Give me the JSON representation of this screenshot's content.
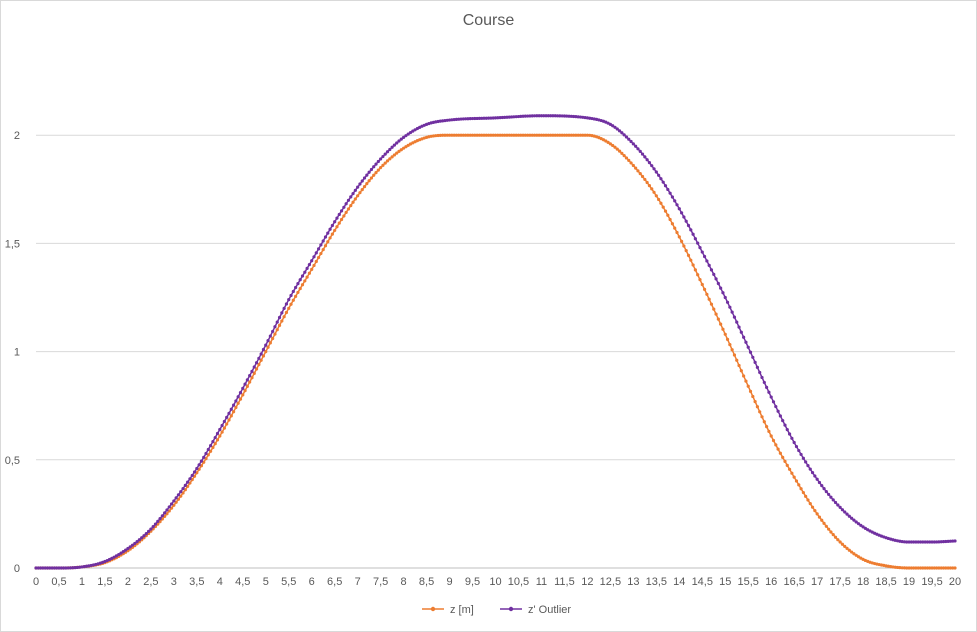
{
  "chart_data": {
    "type": "line",
    "title": "Course",
    "xlabel": "",
    "ylabel": "",
    "xlim": [
      0,
      20
    ],
    "ylim": [
      0,
      2.5
    ],
    "x_ticks": [
      "0",
      "0,5",
      "1",
      "1,5",
      "2",
      "2,5",
      "3",
      "3,5",
      "4",
      "4,5",
      "5",
      "5,5",
      "6",
      "6,5",
      "7",
      "7,5",
      "8",
      "8,5",
      "9",
      "9,5",
      "10",
      "10,5",
      "11",
      "11,5",
      "12",
      "12,5",
      "13",
      "13,5",
      "14",
      "14,5",
      "15",
      "15,5",
      "16",
      "16,5",
      "17",
      "17,5",
      "18",
      "18,5",
      "19",
      "19,5",
      "20"
    ],
    "y_ticks": [
      "0",
      "0,5",
      "1",
      "1,5",
      "2"
    ],
    "grid": "horizontal",
    "legend_position": "bottom",
    "series": [
      {
        "name": "z [m]",
        "color": "#ED7D31",
        "points": [
          [
            0,
            0
          ],
          [
            0.5,
            0
          ],
          [
            1,
            0.005
          ],
          [
            1.5,
            0.025
          ],
          [
            2,
            0.08
          ],
          [
            2.5,
            0.17
          ],
          [
            3,
            0.29
          ],
          [
            3.5,
            0.44
          ],
          [
            4,
            0.61
          ],
          [
            4.5,
            0.8
          ],
          [
            5,
            1.0
          ],
          [
            5.5,
            1.2
          ],
          [
            6,
            1.38
          ],
          [
            6.5,
            1.56
          ],
          [
            7,
            1.72
          ],
          [
            7.5,
            1.85
          ],
          [
            8,
            1.94
          ],
          [
            8.5,
            1.99
          ],
          [
            9,
            2.0
          ],
          [
            10,
            2.0
          ],
          [
            11,
            2.0
          ],
          [
            12,
            2.0
          ],
          [
            12.5,
            1.96
          ],
          [
            13,
            1.86
          ],
          [
            13.5,
            1.72
          ],
          [
            14,
            1.53
          ],
          [
            14.5,
            1.31
          ],
          [
            15,
            1.08
          ],
          [
            15.5,
            0.84
          ],
          [
            16,
            0.61
          ],
          [
            16.5,
            0.42
          ],
          [
            17,
            0.25
          ],
          [
            17.5,
            0.12
          ],
          [
            18,
            0.04
          ],
          [
            18.5,
            0.01
          ],
          [
            19,
            0
          ],
          [
            19.5,
            0
          ],
          [
            20,
            0
          ]
        ]
      },
      {
        "name": "z' Outlier",
        "color": "#7030A0",
        "points": [
          [
            0,
            0
          ],
          [
            0.5,
            0
          ],
          [
            1,
            0.005
          ],
          [
            1.5,
            0.03
          ],
          [
            2,
            0.09
          ],
          [
            2.5,
            0.18
          ],
          [
            3,
            0.31
          ],
          [
            3.5,
            0.46
          ],
          [
            4,
            0.64
          ],
          [
            4.5,
            0.83
          ],
          [
            5,
            1.03
          ],
          [
            5.5,
            1.24
          ],
          [
            6,
            1.42
          ],
          [
            6.5,
            1.6
          ],
          [
            7,
            1.76
          ],
          [
            7.5,
            1.89
          ],
          [
            8,
            1.99
          ],
          [
            8.5,
            2.05
          ],
          [
            9,
            2.07
          ],
          [
            10,
            2.08
          ],
          [
            11,
            2.09
          ],
          [
            12,
            2.08
          ],
          [
            12.5,
            2.05
          ],
          [
            13,
            1.96
          ],
          [
            13.5,
            1.83
          ],
          [
            14,
            1.66
          ],
          [
            14.5,
            1.46
          ],
          [
            15,
            1.25
          ],
          [
            15.5,
            1.02
          ],
          [
            16,
            0.79
          ],
          [
            16.5,
            0.58
          ],
          [
            17,
            0.41
          ],
          [
            17.5,
            0.28
          ],
          [
            18,
            0.19
          ],
          [
            18.5,
            0.14
          ],
          [
            19,
            0.12
          ],
          [
            19.5,
            0.12
          ],
          [
            20,
            0.125
          ]
        ]
      }
    ]
  }
}
